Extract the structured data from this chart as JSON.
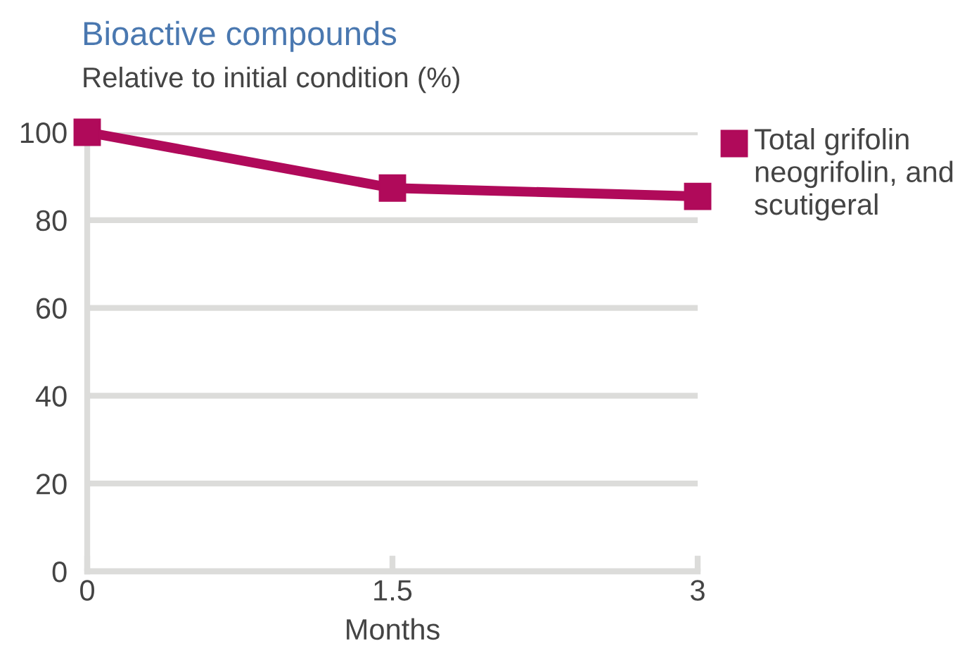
{
  "chart_data": {
    "type": "line",
    "title": "Bioactive compounds",
    "subtitle": "Relative to initial condition (%)",
    "xlabel": "Months",
    "x": [
      0,
      1.5,
      3
    ],
    "series": [
      {
        "name": "Total grifolin neogrifolin, and scutigeral",
        "color": "#b00a5a",
        "values": [
          100,
          87.3,
          85.4
        ]
      }
    ],
    "xlim": [
      0,
      3
    ],
    "xticks": [
      0,
      1.5,
      3
    ],
    "ylim": [
      0,
      100
    ],
    "yticks": [
      0,
      20,
      40,
      60,
      80,
      100
    ],
    "grid": "y",
    "legend": "top right",
    "marker": "square",
    "line_style": "solid"
  }
}
